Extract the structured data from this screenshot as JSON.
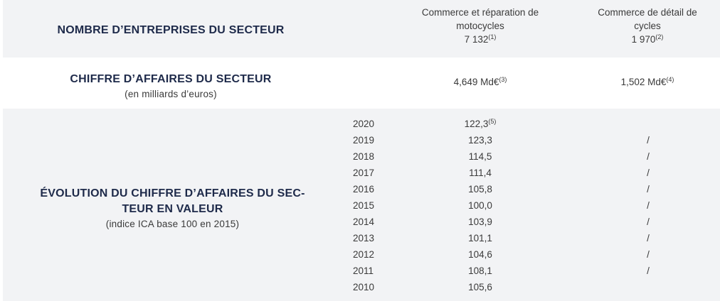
{
  "header": {
    "col1": "Commerce et réparation de motocycles",
    "col2": "Commerce de détail de cycles"
  },
  "companies": {
    "label": "NOMBRE D’ENTREPRISES DU SECTEUR",
    "col1_value": "7 132",
    "col1_note": "(1)",
    "col2_value": "1 970",
    "col2_note": "(2)"
  },
  "turnover": {
    "label": "CHIFFRE D’AFFAIRES DU SECTEUR",
    "sublabel": "(en milliards d’euros)",
    "col1_value": "4,649 Md€",
    "col1_note": "(3)",
    "col2_value": "1,502 Md€",
    "col2_note": "(4)"
  },
  "evolution": {
    "label_line1": "ÉVOLUTION DU CHIFFRE D’AFFAIRES DU SEC-",
    "label_line2": "TEUR EN VALEUR",
    "sublabel": "(indice ICA base 100 en 2015)",
    "first_note": "(5)",
    "rows": [
      {
        "year": "2020",
        "col1": "122,3",
        "col2": ""
      },
      {
        "year": "2019",
        "col1": "123,3",
        "col2": "/"
      },
      {
        "year": "2018",
        "col1": "114,5",
        "col2": "/"
      },
      {
        "year": "2017",
        "col1": "111,4",
        "col2": "/"
      },
      {
        "year": "2016",
        "col1": "105,8",
        "col2": "/"
      },
      {
        "year": "2015",
        "col1": "100,0",
        "col2": "/"
      },
      {
        "year": "2014",
        "col1": "103,9",
        "col2": "/"
      },
      {
        "year": "2013",
        "col1": "101,1",
        "col2": "/"
      },
      {
        "year": "2012",
        "col1": "104,6",
        "col2": "/"
      },
      {
        "year": "2011",
        "col1": "108,1",
        "col2": "/"
      },
      {
        "year": "2010",
        "col1": "105,6",
        "col2": ""
      }
    ]
  }
}
